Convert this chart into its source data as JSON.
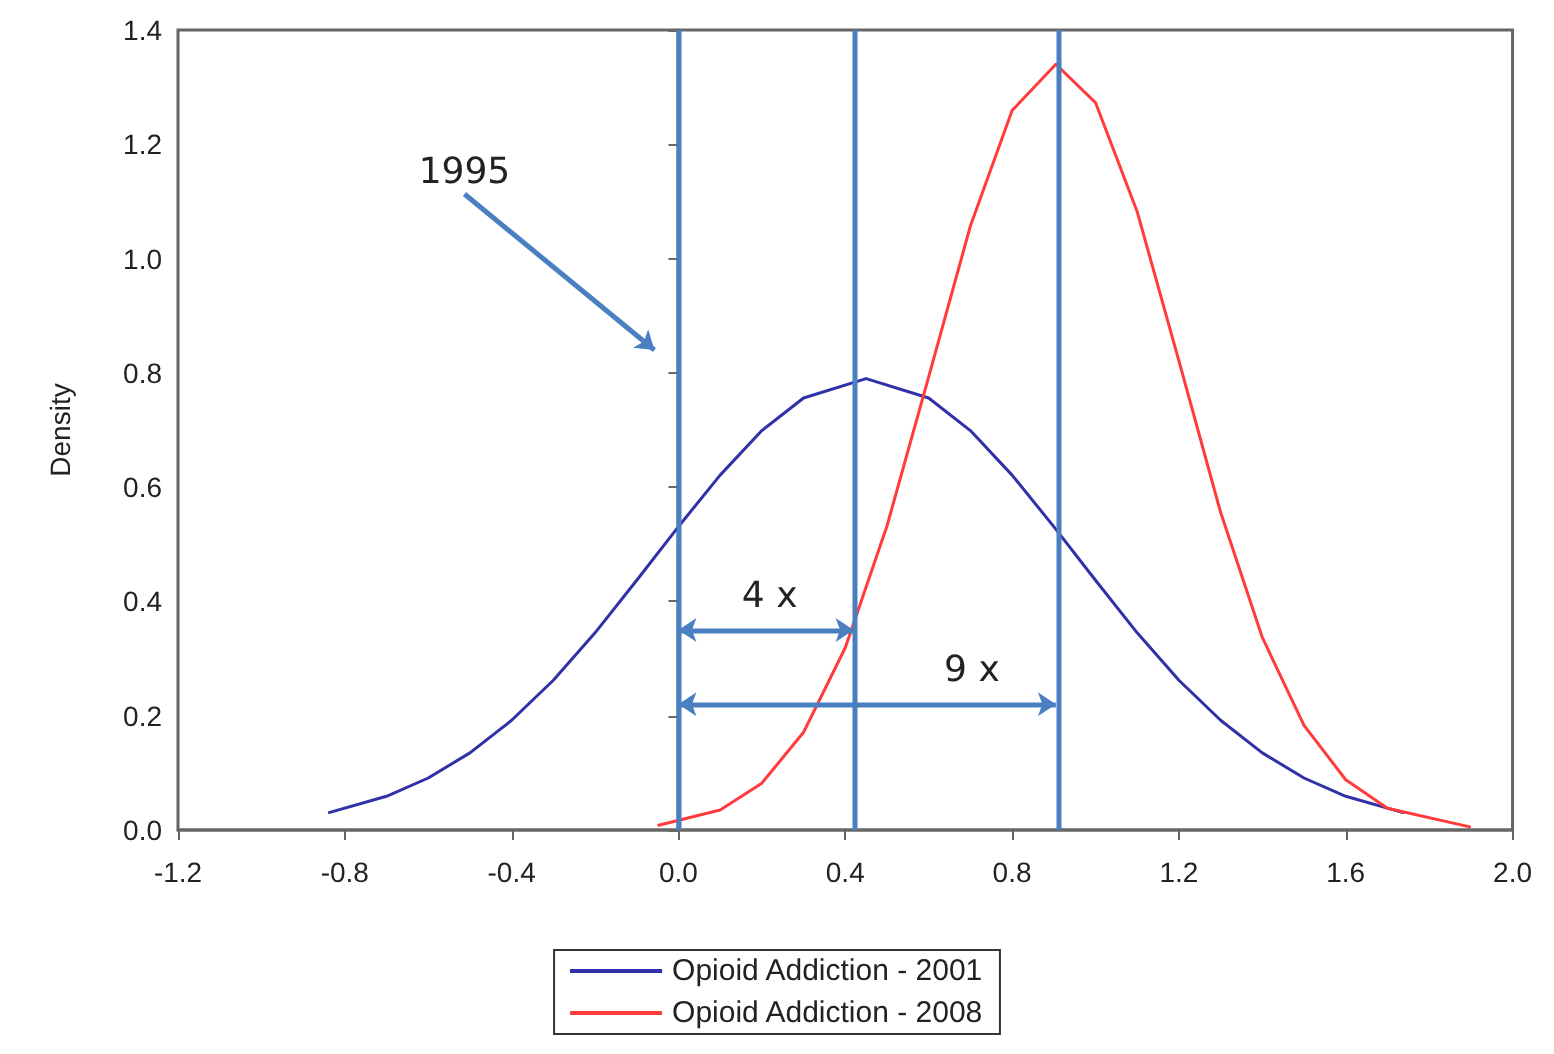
{
  "chart_data": {
    "type": "line",
    "ylabel": "Density",
    "xlim": [
      -1.2,
      2.0
    ],
    "xticks": [
      -1.2,
      -0.8,
      -0.4,
      {
        "value": 0,
        "label": "0.0"
      },
      0.4,
      0.8,
      1.2,
      1.6,
      {
        "value": 2,
        "label": "2.0"
      }
    ],
    "ylim": [
      0,
      1.4
    ],
    "yticks": [
      {
        "value": 0,
        "label": "0.0"
      },
      0.2,
      0.4,
      0.6,
      0.8,
      {
        "value": 1,
        "label": "1.0"
      },
      1.2,
      1.4
    ],
    "series": [
      {
        "name": "Opioid Addiction - 2001",
        "color": "#3030a8",
        "x": [
          -0.84,
          -0.7,
          -0.6,
          -0.5,
          -0.4,
          -0.3,
          -0.2,
          -0.1,
          0,
          0.1,
          0.2,
          0.3,
          0.45,
          0.6,
          0.7,
          0.8,
          0.9,
          1.0,
          1.1,
          1.2,
          1.3,
          1.4,
          1.5,
          1.6,
          1.74
        ],
        "values": [
          0.03,
          0.059,
          0.091,
          0.135,
          0.192,
          0.262,
          0.345,
          0.437,
          0.531,
          0.621,
          0.699,
          0.756,
          0.79,
          0.756,
          0.699,
          0.621,
          0.531,
          0.437,
          0.345,
          0.262,
          0.192,
          0.135,
          0.091,
          0.059,
          0.03
        ]
      },
      {
        "name": "Opioid Addiction - 2008",
        "color": "#ff3b3b",
        "x": [
          -0.05,
          0.1,
          0.2,
          0.3,
          0.4,
          0.5,
          0.6,
          0.7,
          0.8,
          0.905,
          1.0,
          1.1,
          1.2,
          1.3,
          1.4,
          1.5,
          1.6,
          1.7,
          1.9
        ],
        "values": [
          0.008,
          0.035,
          0.082,
          0.171,
          0.319,
          0.532,
          0.793,
          1.057,
          1.259,
          1.34,
          1.273,
          1.082,
          0.821,
          0.556,
          0.337,
          0.183,
          0.088,
          0.038,
          0.005
        ]
      }
    ],
    "ref_lines": [
      {
        "axis": "x",
        "value": 0,
        "color": "#4a7fc1"
      },
      {
        "axis": "x",
        "value": 0.42,
        "color": "#4a7fc1"
      },
      {
        "axis": "x",
        "value": 0.905,
        "color": "#4a7fc1"
      }
    ],
    "annotations": [
      "1995",
      {
        "text": "4 x",
        "x": 0.42,
        "y": 0.35
      },
      {
        "text": "9 x",
        "x": 0.905,
        "y": 0.22
      }
    ],
    "legend": "bottom",
    "grid": false,
    "marker": "none",
    "line_style": "solid"
  }
}
